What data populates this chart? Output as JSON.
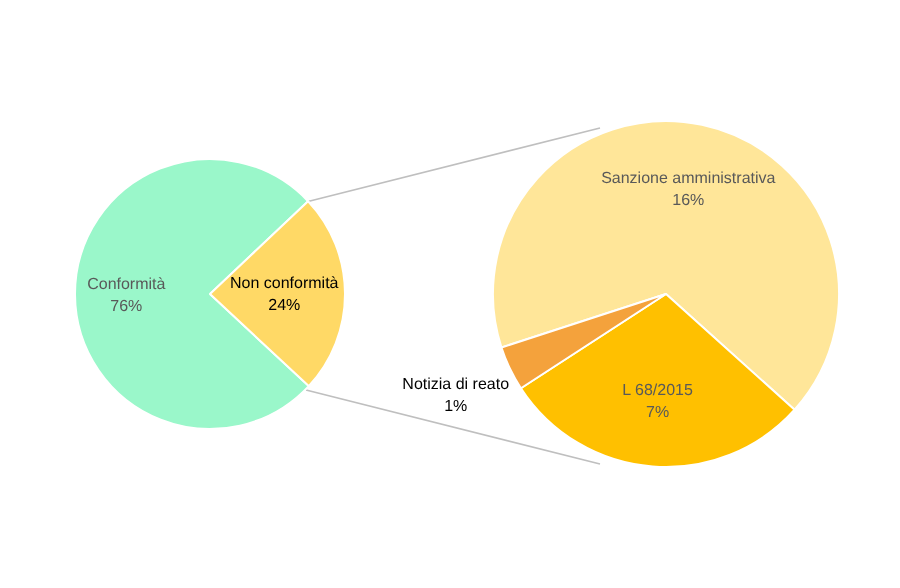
{
  "chart_data": [
    {
      "type": "pie",
      "categories": [
        "Conformità",
        "Non conformità"
      ],
      "values": [
        76,
        24
      ],
      "value_labels": [
        "76%",
        "24%"
      ],
      "colors": [
        "#9af7ca",
        "#ffd966"
      ],
      "legend": false
    },
    {
      "type": "pie",
      "categories": [
        "Sanzione amministrativa",
        "L 68/2015",
        "Notizia di reato"
      ],
      "values": [
        16,
        7,
        1
      ],
      "value_labels": [
        "16%",
        "7%",
        "1%"
      ],
      "colors": [
        "#ffe699",
        "#ffc000",
        "#f4a23c"
      ],
      "legend": false
    }
  ]
}
